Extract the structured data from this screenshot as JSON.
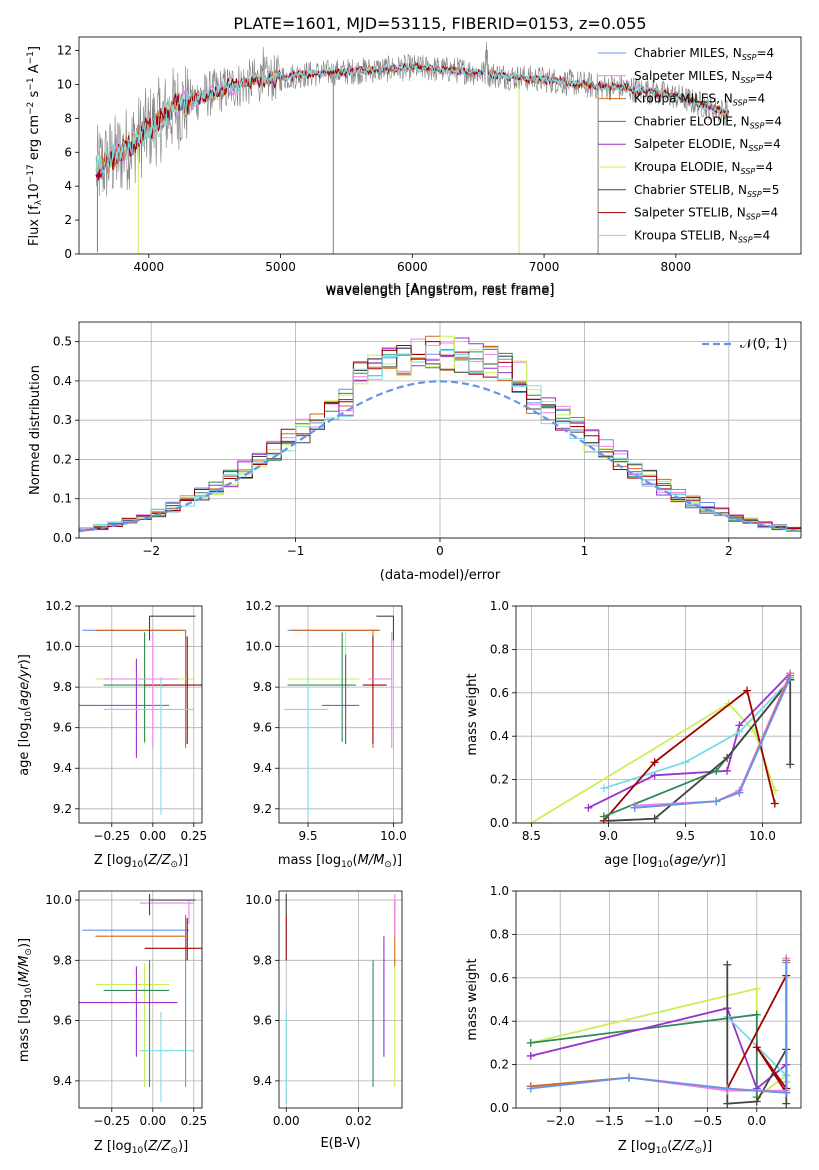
{
  "figure": {
    "title": "PLATE=1601, MJD=53115, FIBERID=0153, z=0.055"
  },
  "colors": {
    "Chabrier MILES": "#6495ed",
    "Salpeter MILES": "#ee82ee",
    "Kroupa MILES": "#d2691e",
    "Chabrier ELODIE": "#2e8b57",
    "Salpeter ELODIE": "#9932cc",
    "Kroupa ELODIE": "#c8f05a",
    "Chabrier STELIB": "#444444",
    "Salpeter STELIB": "#a00000",
    "Kroupa STELIB": "#78dce6",
    "data_spectrum": "#808080",
    "gaussian": "#6495ed",
    "grid": "#b0b0b0"
  },
  "legend_entries": [
    {
      "model": "Chabrier MILES",
      "nssp": "4"
    },
    {
      "model": "Salpeter MILES",
      "nssp": "4"
    },
    {
      "model": "Kroupa MILES",
      "nssp": "4"
    },
    {
      "model": "Chabrier ELODIE",
      "nssp": "4"
    },
    {
      "model": "Salpeter ELODIE",
      "nssp": "4"
    },
    {
      "model": "Kroupa ELODIE",
      "nssp": "4"
    },
    {
      "model": "Chabrier STELIB",
      "nssp": "5"
    },
    {
      "model": "Salpeter STELIB",
      "nssp": "4"
    },
    {
      "model": "Kroupa STELIB",
      "nssp": "4"
    }
  ],
  "chart_data": [
    {
      "id": "spectrum",
      "type": "line",
      "title": "PLATE=1601, MJD=53115, FIBERID=0153, z=0.055",
      "xlabel": "wavelength [Angstrom, rest frame]",
      "ylabel_plain": "Flux [f_λ10^-17 erg cm^-2 s^-1 A^-1]",
      "xlim": [
        3470,
        8950
      ],
      "ylim": [
        0,
        12.8
      ],
      "xticks": [
        4000,
        5000,
        6000,
        7000,
        8000
      ],
      "yticks": [
        0,
        2,
        4,
        6,
        8,
        10,
        12
      ],
      "grid": false,
      "legend_placement": "upper-right",
      "continuum_x": [
        3600,
        3800,
        4000,
        4200,
        4400,
        4600,
        4800,
        5000,
        5200,
        5400,
        5600,
        5800,
        6000,
        6200,
        6400,
        6600,
        6800,
        7000,
        7200,
        7400,
        7600,
        7800,
        8000,
        8200,
        8400
      ],
      "continuum_y": [
        5.0,
        6.0,
        7.4,
        8.6,
        9.3,
        9.8,
        10.2,
        10.4,
        10.6,
        10.7,
        10.8,
        10.9,
        11.0,
        10.9,
        10.8,
        10.6,
        10.4,
        10.3,
        10.1,
        9.9,
        9.8,
        9.6,
        9.3,
        8.8,
        8.3
      ]
    },
    {
      "id": "residuals",
      "type": "histogram",
      "xlabel": "(data-model)/error",
      "ylabel": "Normed distribution",
      "xlim": [
        -2.5,
        2.5
      ],
      "ylim": [
        0,
        0.55
      ],
      "xticks": [
        -2,
        -1,
        0,
        1,
        2
      ],
      "yticks": [
        0.0,
        0.1,
        0.2,
        0.3,
        0.4,
        0.5
      ],
      "grid": true,
      "legend_placement": "upper-right",
      "legend_label": "𝒩(0, 1)",
      "bin_width": 0.1
    },
    {
      "id": "age-vs-Z",
      "type": "errorbar",
      "xlabel_plain": "Z [log10(Z/Z⊙)]",
      "ylabel_plain": "age [log10(age/yr)]",
      "xlim": [
        -0.45,
        0.3
      ],
      "ylim": [
        9.13,
        10.2
      ],
      "xticks": [
        -0.25,
        0.0,
        0.25
      ],
      "yticks": [
        9.2,
        9.4,
        9.6,
        9.8,
        10.0,
        10.2
      ],
      "grid": true,
      "points": [
        {
          "model": "Chabrier MILES",
          "x": [
            -0.43,
            0.2
          ],
          "y": [
            10.08
          ],
          "xe": -0.1,
          "ye": [
            10.08
          ]
        },
        {
          "model": "Kroupa MILES",
          "x": [
            -0.35,
            0.2
          ],
          "y": [
            10.08
          ],
          "xe": 0.2,
          "ye": [
            9.5,
            10.08
          ]
        },
        {
          "model": "Chabrier STELIB",
          "x": [
            -0.02,
            0.26
          ],
          "y": [
            10.15
          ],
          "xe": -0.02,
          "ye": [
            10.03,
            10.15
          ]
        },
        {
          "model": "Kroupa ELODIE",
          "x": [
            -0.35,
            0.25
          ],
          "y": [
            9.84
          ],
          "xe": -0.05,
          "ye": [
            9.52,
            10.07
          ]
        },
        {
          "model": "Chabrier ELODIE",
          "x": [
            -0.3,
            0.1
          ],
          "y": [
            9.81
          ],
          "xe": -0.05,
          "ye": [
            9.53,
            10.07
          ]
        },
        {
          "model": "Salpeter STELIB",
          "x": [
            -0.05,
            0.3
          ],
          "y": [
            9.81
          ],
          "xe": 0.21,
          "ye": [
            9.52,
            10.05
          ]
        },
        {
          "model": "Salpeter ELODIE",
          "x": [
            -0.45,
            0.1
          ],
          "y": [
            9.71
          ],
          "xe": -0.1,
          "ye": [
            9.45,
            9.94
          ]
        },
        {
          "model": "Kroupa STELIB",
          "x": [
            -0.3,
            0.25
          ],
          "y": [
            9.69
          ],
          "xe": 0.05,
          "ye": [
            9.17,
            9.85
          ]
        },
        {
          "model": "Salpeter MILES",
          "x": [
            -0.3,
            0.15
          ],
          "y": [
            9.84
          ],
          "xe": 0.0,
          "ye": [
            9.5,
            10.07
          ]
        }
      ]
    },
    {
      "id": "age-vs-mass",
      "type": "errorbar",
      "xlabel_plain": "mass [log10(M/M⊙)]",
      "ylabel_plain": "",
      "xlim": [
        9.33,
        10.05
      ],
      "ylim": [
        9.13,
        10.2
      ],
      "xticks": [
        9.5,
        10.0
      ],
      "yticks": [
        9.2,
        9.4,
        9.6,
        9.8,
        10.0,
        10.2
      ],
      "grid": true,
      "points": [
        {
          "model": "Chabrier MILES",
          "x": [
            9.38,
            9.92
          ],
          "y": [
            10.08
          ],
          "xe": 9.92,
          "ye": [
            10.08
          ]
        },
        {
          "model": "Kroupa MILES",
          "x": [
            9.4,
            9.92
          ],
          "y": [
            10.08
          ],
          "xe": 9.88,
          "ye": [
            9.5,
            10.08
          ]
        },
        {
          "model": "Chabrier STELIB",
          "x": [
            9.9,
            10.0
          ],
          "y": [
            10.15
          ],
          "xe": 10.0,
          "ye": [
            10.03,
            10.15
          ]
        },
        {
          "model": "Kroupa ELODIE",
          "x": [
            9.38,
            9.8
          ],
          "y": [
            9.84
          ],
          "xe": 9.72,
          "ye": [
            9.52,
            10.07
          ]
        },
        {
          "model": "Chabrier ELODIE",
          "x": [
            9.38,
            9.78
          ],
          "y": [
            9.81
          ],
          "xe": 9.7,
          "ye": [
            9.53,
            10.07
          ]
        },
        {
          "model": "Salpeter STELIB",
          "x": [
            9.82,
            9.96
          ],
          "y": [
            9.81
          ],
          "xe": 9.88,
          "ye": [
            9.52,
            10.05
          ]
        },
        {
          "model": "Salpeter ELODIE",
          "x": [
            9.58,
            9.8
          ],
          "y": [
            9.71
          ],
          "xe": 9.72,
          "ye": [
            9.52,
            9.96
          ]
        },
        {
          "model": "Kroupa STELIB",
          "x": [
            9.36,
            9.62
          ],
          "y": [
            9.69
          ],
          "xe": 9.5,
          "ye": [
            9.17,
            9.85
          ]
        },
        {
          "model": "Salpeter MILES",
          "x": [
            9.85,
            9.99
          ],
          "y": [
            9.84
          ],
          "xe": 9.99,
          "ye": [
            9.5,
            10.07
          ]
        }
      ]
    },
    {
      "id": "weight-vs-age",
      "type": "line",
      "xlabel_plain": "age [log10(age/yr)]",
      "ylabel": "mass weight",
      "xlim": [
        8.4,
        10.25
      ],
      "ylim": [
        0,
        1
      ],
      "xticks": [
        8.5,
        9.0,
        9.5,
        10.0
      ],
      "yticks": [
        0.0,
        0.2,
        0.4,
        0.6,
        0.8,
        1.0
      ],
      "grid": true,
      "series": [
        {
          "model": "Kroupa ELODIE",
          "x": [
            8.5,
            9.78,
            9.95,
            10.08
          ],
          "y": [
            0.0,
            0.55,
            0.42,
            0.15
          ]
        },
        {
          "model": "Salpeter ELODIE",
          "x": [
            8.87,
            9.3,
            9.77,
            9.85,
            10.18
          ],
          "y": [
            0.07,
            0.22,
            0.24,
            0.45,
            0.69
          ]
        },
        {
          "model": "Kroupa STELIB",
          "x": [
            8.97,
            9.5,
            9.85,
            10.18
          ],
          "y": [
            0.16,
            0.28,
            0.42,
            0.66
          ]
        },
        {
          "model": "Salpeter STELIB",
          "x": [
            8.97,
            9.3,
            9.9,
            10.08
          ],
          "y": [
            0.01,
            0.28,
            0.61,
            0.09
          ]
        },
        {
          "model": "Chabrier ELODIE",
          "x": [
            8.97,
            9.7,
            10.18
          ],
          "y": [
            0.03,
            0.24,
            0.66
          ]
        },
        {
          "model": "Chabrier STELIB",
          "x": [
            9.0,
            9.3,
            9.77,
            10.18,
            10.18
          ],
          "y": [
            0.01,
            0.02,
            0.3,
            0.66,
            0.27
          ]
        },
        {
          "model": "Salpeter MILES",
          "x": [
            9.17,
            9.7,
            9.85,
            10.18
          ],
          "y": [
            0.08,
            0.1,
            0.15,
            0.69
          ]
        },
        {
          "model": "Kroupa MILES",
          "x": [
            9.17,
            9.7,
            9.85,
            10.18
          ],
          "y": [
            0.07,
            0.1,
            0.14,
            0.68
          ]
        },
        {
          "model": "Chabrier MILES",
          "x": [
            9.17,
            9.7,
            9.85,
            10.18
          ],
          "y": [
            0.07,
            0.1,
            0.14,
            0.67
          ]
        }
      ]
    },
    {
      "id": "mass-vs-Z",
      "type": "errorbar",
      "xlabel_plain": "Z [log10(Z/Z⊙)]",
      "ylabel_plain": "mass [log10(M/M⊙)]",
      "xlim": [
        -0.45,
        0.3
      ],
      "ylim": [
        9.31,
        10.03
      ],
      "xticks": [
        -0.25,
        0.0,
        0.25
      ],
      "yticks": [
        9.4,
        9.6,
        9.8,
        10.0
      ],
      "grid": true,
      "points": [
        {
          "model": "Chabrier MILES",
          "x": [
            -0.43,
            0.22
          ],
          "y": [
            9.9
          ],
          "xe": 0.2,
          "ye": [
            9.38,
            9.95
          ]
        },
        {
          "model": "Kroupa MILES",
          "x": [
            -0.35,
            0.2
          ],
          "y": [
            9.88
          ],
          "xe": 0.2,
          "ye": [
            9.8,
            9.95
          ]
        },
        {
          "model": "Salpeter MILES",
          "x": [
            -0.08,
            0.25
          ],
          "y": [
            9.99
          ],
          "xe": 0.22,
          "ye": [
            9.92,
            10.0
          ]
        },
        {
          "model": "Chabrier STELIB",
          "x": [
            -0.02,
            0.26
          ],
          "y": [
            10.0
          ],
          "xe": -0.02,
          "ye": [
            9.95,
            10.02
          ]
        },
        {
          "model": "Salpeter STELIB",
          "x": [
            -0.05,
            0.3
          ],
          "y": [
            9.84
          ],
          "xe": 0.21,
          "ye": [
            9.8,
            9.94
          ]
        },
        {
          "model": "Kroupa ELODIE",
          "x": [
            -0.35,
            0.1
          ],
          "y": [
            9.72
          ],
          "xe": -0.05,
          "ye": [
            9.38,
            9.79
          ]
        },
        {
          "model": "Chabrier ELODIE",
          "x": [
            -0.3,
            0.1
          ],
          "y": [
            9.7
          ],
          "xe": -0.02,
          "ye": [
            9.38,
            9.8
          ]
        },
        {
          "model": "Salpeter ELODIE",
          "x": [
            -0.45,
            0.15
          ],
          "y": [
            9.66
          ],
          "xe": -0.1,
          "ye": [
            9.48,
            9.78
          ]
        },
        {
          "model": "Kroupa STELIB",
          "x": [
            -0.08,
            0.25
          ],
          "y": [
            9.5
          ],
          "xe": 0.05,
          "ye": [
            9.33,
            9.63
          ]
        }
      ]
    },
    {
      "id": "mass-vs-EBV",
      "type": "errorbar",
      "xlabel": "E(B-V)",
      "ylabel_plain": "",
      "xlim": [
        -0.002,
        0.032
      ],
      "ylim": [
        9.31,
        10.03
      ],
      "xticks": [
        0.0,
        0.02
      ],
      "xtick_labels": [
        "0.00",
        "0.02"
      ],
      "yticks": [
        9.4,
        9.6,
        9.8,
        10.0
      ],
      "grid": true,
      "points": [
        {
          "model": "Chabrier STELIB",
          "x": [
            0.0
          ],
          "y": [
            9.98
          ],
          "xe": 0.0,
          "ye": [
            9.95,
            10.02
          ]
        },
        {
          "model": "Salpeter STELIB",
          "x": [
            0.0
          ],
          "y": [
            9.86
          ],
          "xe": 0.0,
          "ye": [
            9.8,
            9.95
          ]
        },
        {
          "model": "Kroupa STELIB",
          "x": [
            0.0
          ],
          "y": [
            9.5
          ],
          "xe": 0.0,
          "ye": [
            9.33,
            9.63
          ]
        },
        {
          "model": "Chabrier ELODIE",
          "x": [
            0.024
          ],
          "y": [
            9.6
          ],
          "xe": 0.024,
          "ye": [
            9.38,
            9.8
          ]
        },
        {
          "model": "Salpeter ELODIE",
          "x": [
            0.027
          ],
          "y": [
            9.7
          ],
          "xe": 0.027,
          "ye": [
            9.48,
            9.88
          ]
        },
        {
          "model": "Kroupa ELODIE",
          "x": [
            0.03
          ],
          "y": [
            9.6
          ],
          "xe": 0.03,
          "ye": [
            9.38,
            9.8
          ]
        },
        {
          "model": "Kroupa MILES",
          "x": [
            0.03
          ],
          "y": [
            9.9
          ],
          "xe": 0.03,
          "ye": [
            9.78,
            10.0
          ]
        },
        {
          "model": "Salpeter MILES",
          "x": [
            0.03
          ],
          "y": [
            9.95
          ],
          "xe": 0.03,
          "ye": [
            9.88,
            10.02
          ]
        }
      ]
    },
    {
      "id": "weight-vs-Z",
      "type": "line",
      "xlabel_plain": "Z [log10(Z/Z⊙)]",
      "ylabel": "mass weight",
      "xlim": [
        -2.45,
        0.45
      ],
      "ylim": [
        0,
        1
      ],
      "xticks": [
        -2.0,
        -1.5,
        -1.0,
        -0.5,
        0.0
      ],
      "yticks": [
        0.0,
        0.2,
        0.4,
        0.6,
        0.8,
        1.0
      ],
      "grid": true,
      "series": [
        {
          "model": "Kroupa ELODIE",
          "x": [
            -2.3,
            0.0,
            0.0,
            0.3
          ],
          "y": [
            0.3,
            0.55,
            0.05,
            0.15
          ]
        },
        {
          "model": "Chabrier ELODIE",
          "x": [
            -2.3,
            0.0,
            0.0
          ],
          "y": [
            0.3,
            0.43,
            0.05
          ]
        },
        {
          "model": "Salpeter ELODIE",
          "x": [
            -2.3,
            -0.3,
            0.0,
            0.3
          ],
          "y": [
            0.24,
            0.46,
            0.09,
            0.2
          ]
        },
        {
          "model": "Kroupa STELIB",
          "x": [
            -0.3,
            0.3,
            0.3
          ],
          "y": [
            0.42,
            0.15,
            0.12
          ]
        },
        {
          "model": "Salpeter STELIB",
          "x": [
            -0.3,
            0.3,
            0.3,
            0.0,
            0.3
          ],
          "y": [
            0.09,
            0.61,
            0.07,
            0.28,
            0.09
          ]
        },
        {
          "model": "Chabrier STELIB",
          "x": [
            -0.3,
            -0.3,
            0.0,
            0.3,
            0.3
          ],
          "y": [
            0.66,
            0.02,
            0.03,
            0.27,
            0.02
          ]
        },
        {
          "model": "Salpeter MILES",
          "x": [
            -2.3,
            -1.3,
            -0.3,
            0.3,
            0.3
          ],
          "y": [
            0.1,
            0.14,
            0.08,
            0.08,
            0.69
          ]
        },
        {
          "model": "Kroupa MILES",
          "x": [
            -2.3,
            -1.3,
            -0.3,
            0.3,
            0.3
          ],
          "y": [
            0.1,
            0.14,
            0.09,
            0.07,
            0.68
          ]
        },
        {
          "model": "Chabrier MILES",
          "x": [
            -2.3,
            -1.3,
            -0.3,
            0.3,
            0.3
          ],
          "y": [
            0.09,
            0.14,
            0.09,
            0.07,
            0.67
          ]
        }
      ]
    }
  ]
}
